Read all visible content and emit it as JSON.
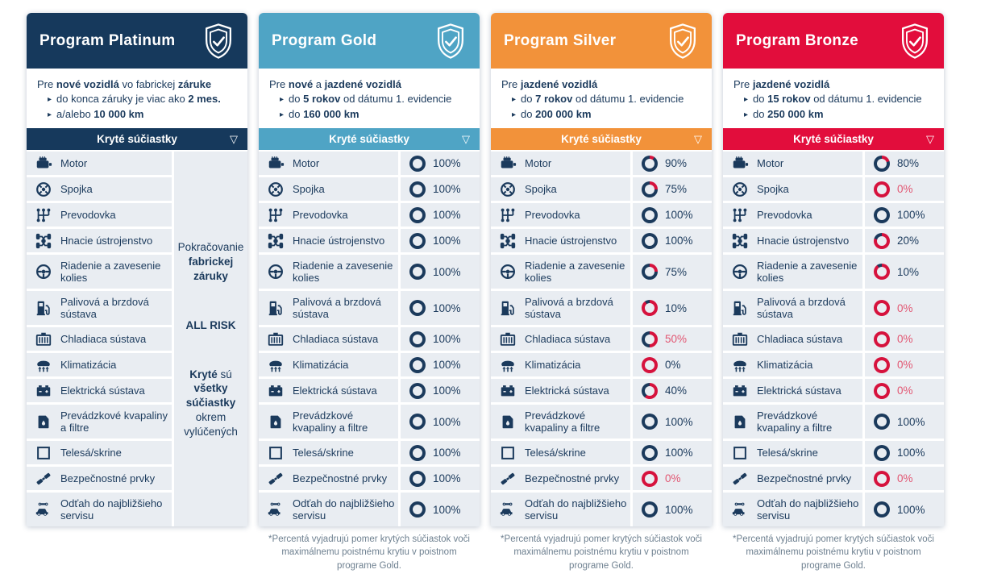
{
  "covered_parts_header": "Kryté súčiastky",
  "footnote": "*Percentá vyjadrujú pomer krytých súčiastok voči maximálnemu poistnému krytiu v poistnom programe Gold.",
  "icons": {
    "bullet": "▸",
    "collapse": "▽",
    "badge": "shield-check-icon"
  },
  "colors": {
    "platinum": "#16395C",
    "gold": "#4FA4C5",
    "silver": "#F2923A",
    "bronze": "#E20D3C",
    "row_bg": "#E9EDF2",
    "text_navy": "#1B3A5C",
    "ring_red": "#D6123D",
    "red_text": "#E25672",
    "footnote_gray": "#6E8090"
  },
  "parts": [
    {
      "label": "Motor",
      "icon": "engine-icon"
    },
    {
      "label": "Spojka",
      "icon": "clutch-icon"
    },
    {
      "label": "Prevodovka",
      "icon": "gearbox-icon"
    },
    {
      "label": "Hnacie ústrojenstvo",
      "icon": "drivetrain-icon"
    },
    {
      "label": "Riadenie a zavesenie kolies",
      "icon": "steering-wheel-icon",
      "two_line": true
    },
    {
      "label": "Palivová a brzdová sústava",
      "icon": "fuel-pump-icon",
      "two_line": true
    },
    {
      "label": "Chladiaca sústava",
      "icon": "radiator-icon"
    },
    {
      "label": "Klimatizácia",
      "icon": "ac-icon"
    },
    {
      "label": "Elektrická sústava",
      "icon": "battery-icon"
    },
    {
      "label": "Prevádzkové kvapaliny a filtre",
      "icon": "oil-can-icon",
      "two_line": true
    },
    {
      "label": "Telesá/skrine",
      "icon": "body-shell-icon"
    },
    {
      "label": "Bezpečnostné prvky",
      "icon": "seatbelt-icon"
    },
    {
      "label": "Odťah do najbližšieho servisu",
      "icon": "tow-truck-icon",
      "two_line": true
    }
  ],
  "programs": [
    {
      "id": "platinum",
      "title": "Program Platinum",
      "accent": "#16395C",
      "intro": {
        "lead": [
          {
            "t": "Pre "
          },
          {
            "t": "nové vozidlá",
            "b": true
          },
          {
            "t": " vo fabrickej "
          },
          {
            "t": "záruke",
            "b": true
          }
        ],
        "bullets": [
          [
            {
              "t": "do konca záruky je viac ako "
            },
            {
              "t": "2 mes.",
              "b": true
            }
          ],
          [
            {
              "t": "a/alebo "
            },
            {
              "t": "10 000 km",
              "b": true
            }
          ]
        ]
      },
      "coverage": null,
      "side_notes": [
        [
          {
            "t": "Pokračovanie "
          },
          {
            "t": "fabrickej záruky",
            "b": true
          }
        ],
        [
          {
            "t": "ALL RISK",
            "b": true
          }
        ],
        [
          {
            "t": "Kryté",
            "b": true
          },
          {
            "t": " sú "
          },
          {
            "t": "všetky súčiastky",
            "b": true
          },
          {
            "t": " okrem vylúčených"
          }
        ]
      ]
    },
    {
      "id": "gold",
      "title": "Program Gold",
      "accent": "#4FA4C5",
      "intro": {
        "lead": [
          {
            "t": "Pre "
          },
          {
            "t": "nové",
            "b": true
          },
          {
            "t": " a "
          },
          {
            "t": "jazdené vozidlá",
            "b": true
          }
        ],
        "bullets": [
          [
            {
              "t": "do "
            },
            {
              "t": "5 rokov",
              "b": true
            },
            {
              "t": " od dátumu 1. evidencie"
            }
          ],
          [
            {
              "t": "do "
            },
            {
              "t": "160 000 km",
              "b": true
            }
          ]
        ]
      },
      "coverage": [
        {
          "pct": "100%",
          "value": 100,
          "red": false
        },
        {
          "pct": "100%",
          "value": 100,
          "red": false
        },
        {
          "pct": "100%",
          "value": 100,
          "red": false
        },
        {
          "pct": "100%",
          "value": 100,
          "red": false
        },
        {
          "pct": "100%",
          "value": 100,
          "red": false
        },
        {
          "pct": "100%",
          "value": 100,
          "red": false
        },
        {
          "pct": "100%",
          "value": 100,
          "red": false
        },
        {
          "pct": "100%",
          "value": 100,
          "red": false
        },
        {
          "pct": "100%",
          "value": 100,
          "red": false
        },
        {
          "pct": "100%",
          "value": 100,
          "red": false
        },
        {
          "pct": "100%",
          "value": 100,
          "red": false
        },
        {
          "pct": "100%",
          "value": 100,
          "red": false
        },
        {
          "pct": "100%",
          "value": 100,
          "red": false
        }
      ]
    },
    {
      "id": "silver",
      "title": "Program Silver",
      "accent": "#F2923A",
      "intro": {
        "lead": [
          {
            "t": "Pre "
          },
          {
            "t": "jazdené vozidlá",
            "b": true
          }
        ],
        "bullets": [
          [
            {
              "t": "do "
            },
            {
              "t": "7 rokov",
              "b": true
            },
            {
              "t": " od dátumu 1. evidencie"
            }
          ],
          [
            {
              "t": "do "
            },
            {
              "t": "200 000 km",
              "b": true
            }
          ]
        ]
      },
      "coverage": [
        {
          "pct": "90%",
          "value": 90,
          "red": false
        },
        {
          "pct": "75%",
          "value": 75,
          "red": false
        },
        {
          "pct": "100%",
          "value": 100,
          "red": false
        },
        {
          "pct": "100%",
          "value": 100,
          "red": false
        },
        {
          "pct": "75%",
          "value": 75,
          "red": false
        },
        {
          "pct": "10%",
          "value": 10,
          "red": false
        },
        {
          "pct": "50%",
          "value": 50,
          "red": true
        },
        {
          "pct": "0%",
          "value": 0,
          "red": false
        },
        {
          "pct": "40%",
          "value": 40,
          "red": false
        },
        {
          "pct": "100%",
          "value": 100,
          "red": false
        },
        {
          "pct": "100%",
          "value": 100,
          "red": false
        },
        {
          "pct": "0%",
          "value": 0,
          "red": true
        },
        {
          "pct": "100%",
          "value": 100,
          "red": false
        }
      ]
    },
    {
      "id": "bronze",
      "title": "Program Bronze",
      "accent": "#E20D3C",
      "intro": {
        "lead": [
          {
            "t": "Pre "
          },
          {
            "t": "jazdené vozidlá",
            "b": true
          }
        ],
        "bullets": [
          [
            {
              "t": "do "
            },
            {
              "t": "15 rokov",
              "b": true
            },
            {
              "t": " od dátumu 1. evidencie"
            }
          ],
          [
            {
              "t": "do "
            },
            {
              "t": "250 000 km",
              "b": true
            }
          ]
        ]
      },
      "coverage": [
        {
          "pct": "80%",
          "value": 80,
          "red": false
        },
        {
          "pct": "0%",
          "value": 0,
          "red": true
        },
        {
          "pct": "100%",
          "value": 100,
          "red": false
        },
        {
          "pct": "20%",
          "value": 20,
          "red": false
        },
        {
          "pct": "10%",
          "value": 10,
          "red": false
        },
        {
          "pct": "0%",
          "value": 0,
          "red": true
        },
        {
          "pct": "0%",
          "value": 0,
          "red": true
        },
        {
          "pct": "0%",
          "value": 0,
          "red": true
        },
        {
          "pct": "0%",
          "value": 0,
          "red": true
        },
        {
          "pct": "100%",
          "value": 100,
          "red": false
        },
        {
          "pct": "100%",
          "value": 100,
          "red": false
        },
        {
          "pct": "0%",
          "value": 0,
          "red": true
        },
        {
          "pct": "100%",
          "value": 100,
          "red": false
        }
      ]
    }
  ]
}
